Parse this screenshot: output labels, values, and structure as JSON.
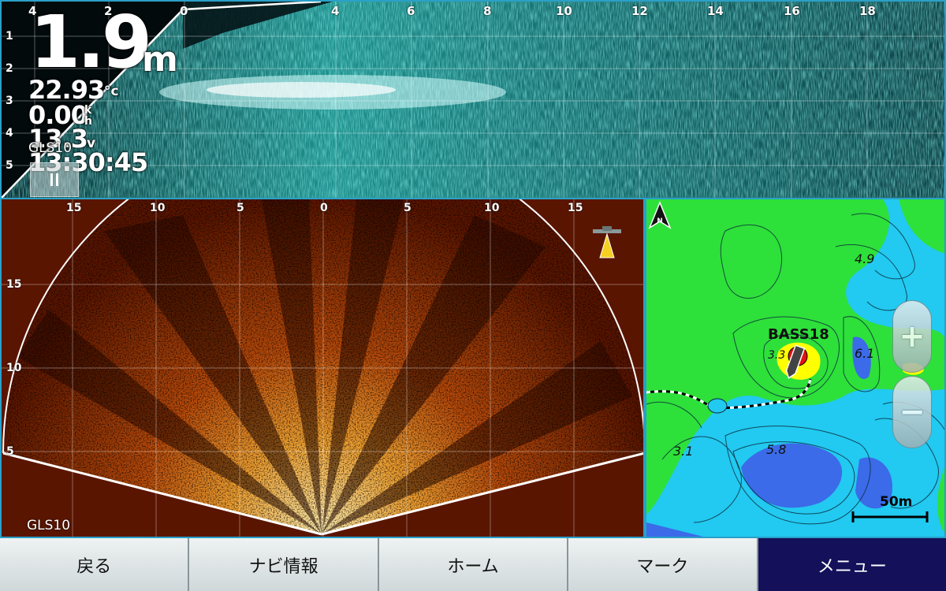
{
  "top_sonar": {
    "x_ticks": [
      "4",
      "2",
      "0",
      "4",
      "6",
      "8",
      "10",
      "12",
      "14",
      "16",
      "18"
    ],
    "y_ticks": [
      "1",
      "2",
      "3",
      "4",
      "5"
    ],
    "depth_value": "1.9",
    "depth_unit": "m",
    "water_temp_value": "22.93",
    "water_temp_unit": "°c",
    "speed_value": "0.00",
    "speed_unit_top": "k",
    "speed_unit_bottom": "h",
    "voltage_value": "13.3",
    "voltage_unit": "v",
    "time_value": "13:30:45",
    "source_label": "GLS10",
    "pause_button_icon": "pause-icon",
    "echo_color": "#3fd9d0"
  },
  "fan_sonar": {
    "x_ticks": [
      "15",
      "10",
      "5",
      "0",
      "5",
      "10",
      "15"
    ],
    "y_ticks": [
      "15",
      "10",
      "5"
    ],
    "source_label": "GLS10",
    "echo_colors": [
      "#5a1500",
      "#b84a0a",
      "#f0a030",
      "#fff0b0"
    ],
    "transducer_icon": "transducer-icon"
  },
  "map": {
    "waypoint_label": "BASS18",
    "contour_labels": [
      "4.9",
      "6.1",
      "3.3",
      "5.8",
      "3.1"
    ],
    "scale_label": "50m",
    "zoom_in_label": "+",
    "zoom_out_label": "−",
    "north_icon": "north-arrow-icon",
    "colors": {
      "land_green": "#2ee03a",
      "shallow_yellow": "#ffff00",
      "water_cyan": "#22c9f0",
      "deep_blue": "#3b6be8",
      "waypoint_red": "#e21010"
    }
  },
  "button_bar": [
    {
      "label": "戻る",
      "name": "back-button",
      "active": false
    },
    {
      "label": "ナビ情報",
      "name": "nav-info-button",
      "active": false
    },
    {
      "label": "ホーム",
      "name": "home-button",
      "active": false
    },
    {
      "label": "マーク",
      "name": "mark-button",
      "active": false
    },
    {
      "label": "メニュー",
      "name": "menu-button",
      "active": true
    }
  ]
}
